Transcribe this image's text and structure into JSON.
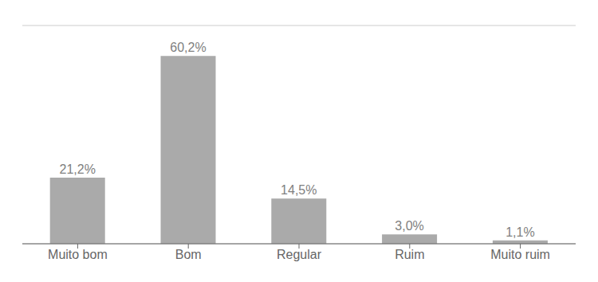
{
  "chart_data": {
    "type": "bar",
    "categories": [
      "Muito bom",
      "Bom",
      "Regular",
      "Ruim",
      "Muito ruim"
    ],
    "values": [
      21.2,
      60.2,
      14.5,
      3.0,
      1.1
    ],
    "value_labels": [
      "21,2%",
      "60,2%",
      "14,5%",
      "3,0%",
      "1,1%"
    ],
    "data_labels": true,
    "color": "#aaaaaa",
    "ylim": [
      0,
      70
    ],
    "yticks": [
      0,
      10,
      20,
      30,
      40,
      50,
      60,
      70
    ],
    "grid": true,
    "tick_labels": "x"
  }
}
